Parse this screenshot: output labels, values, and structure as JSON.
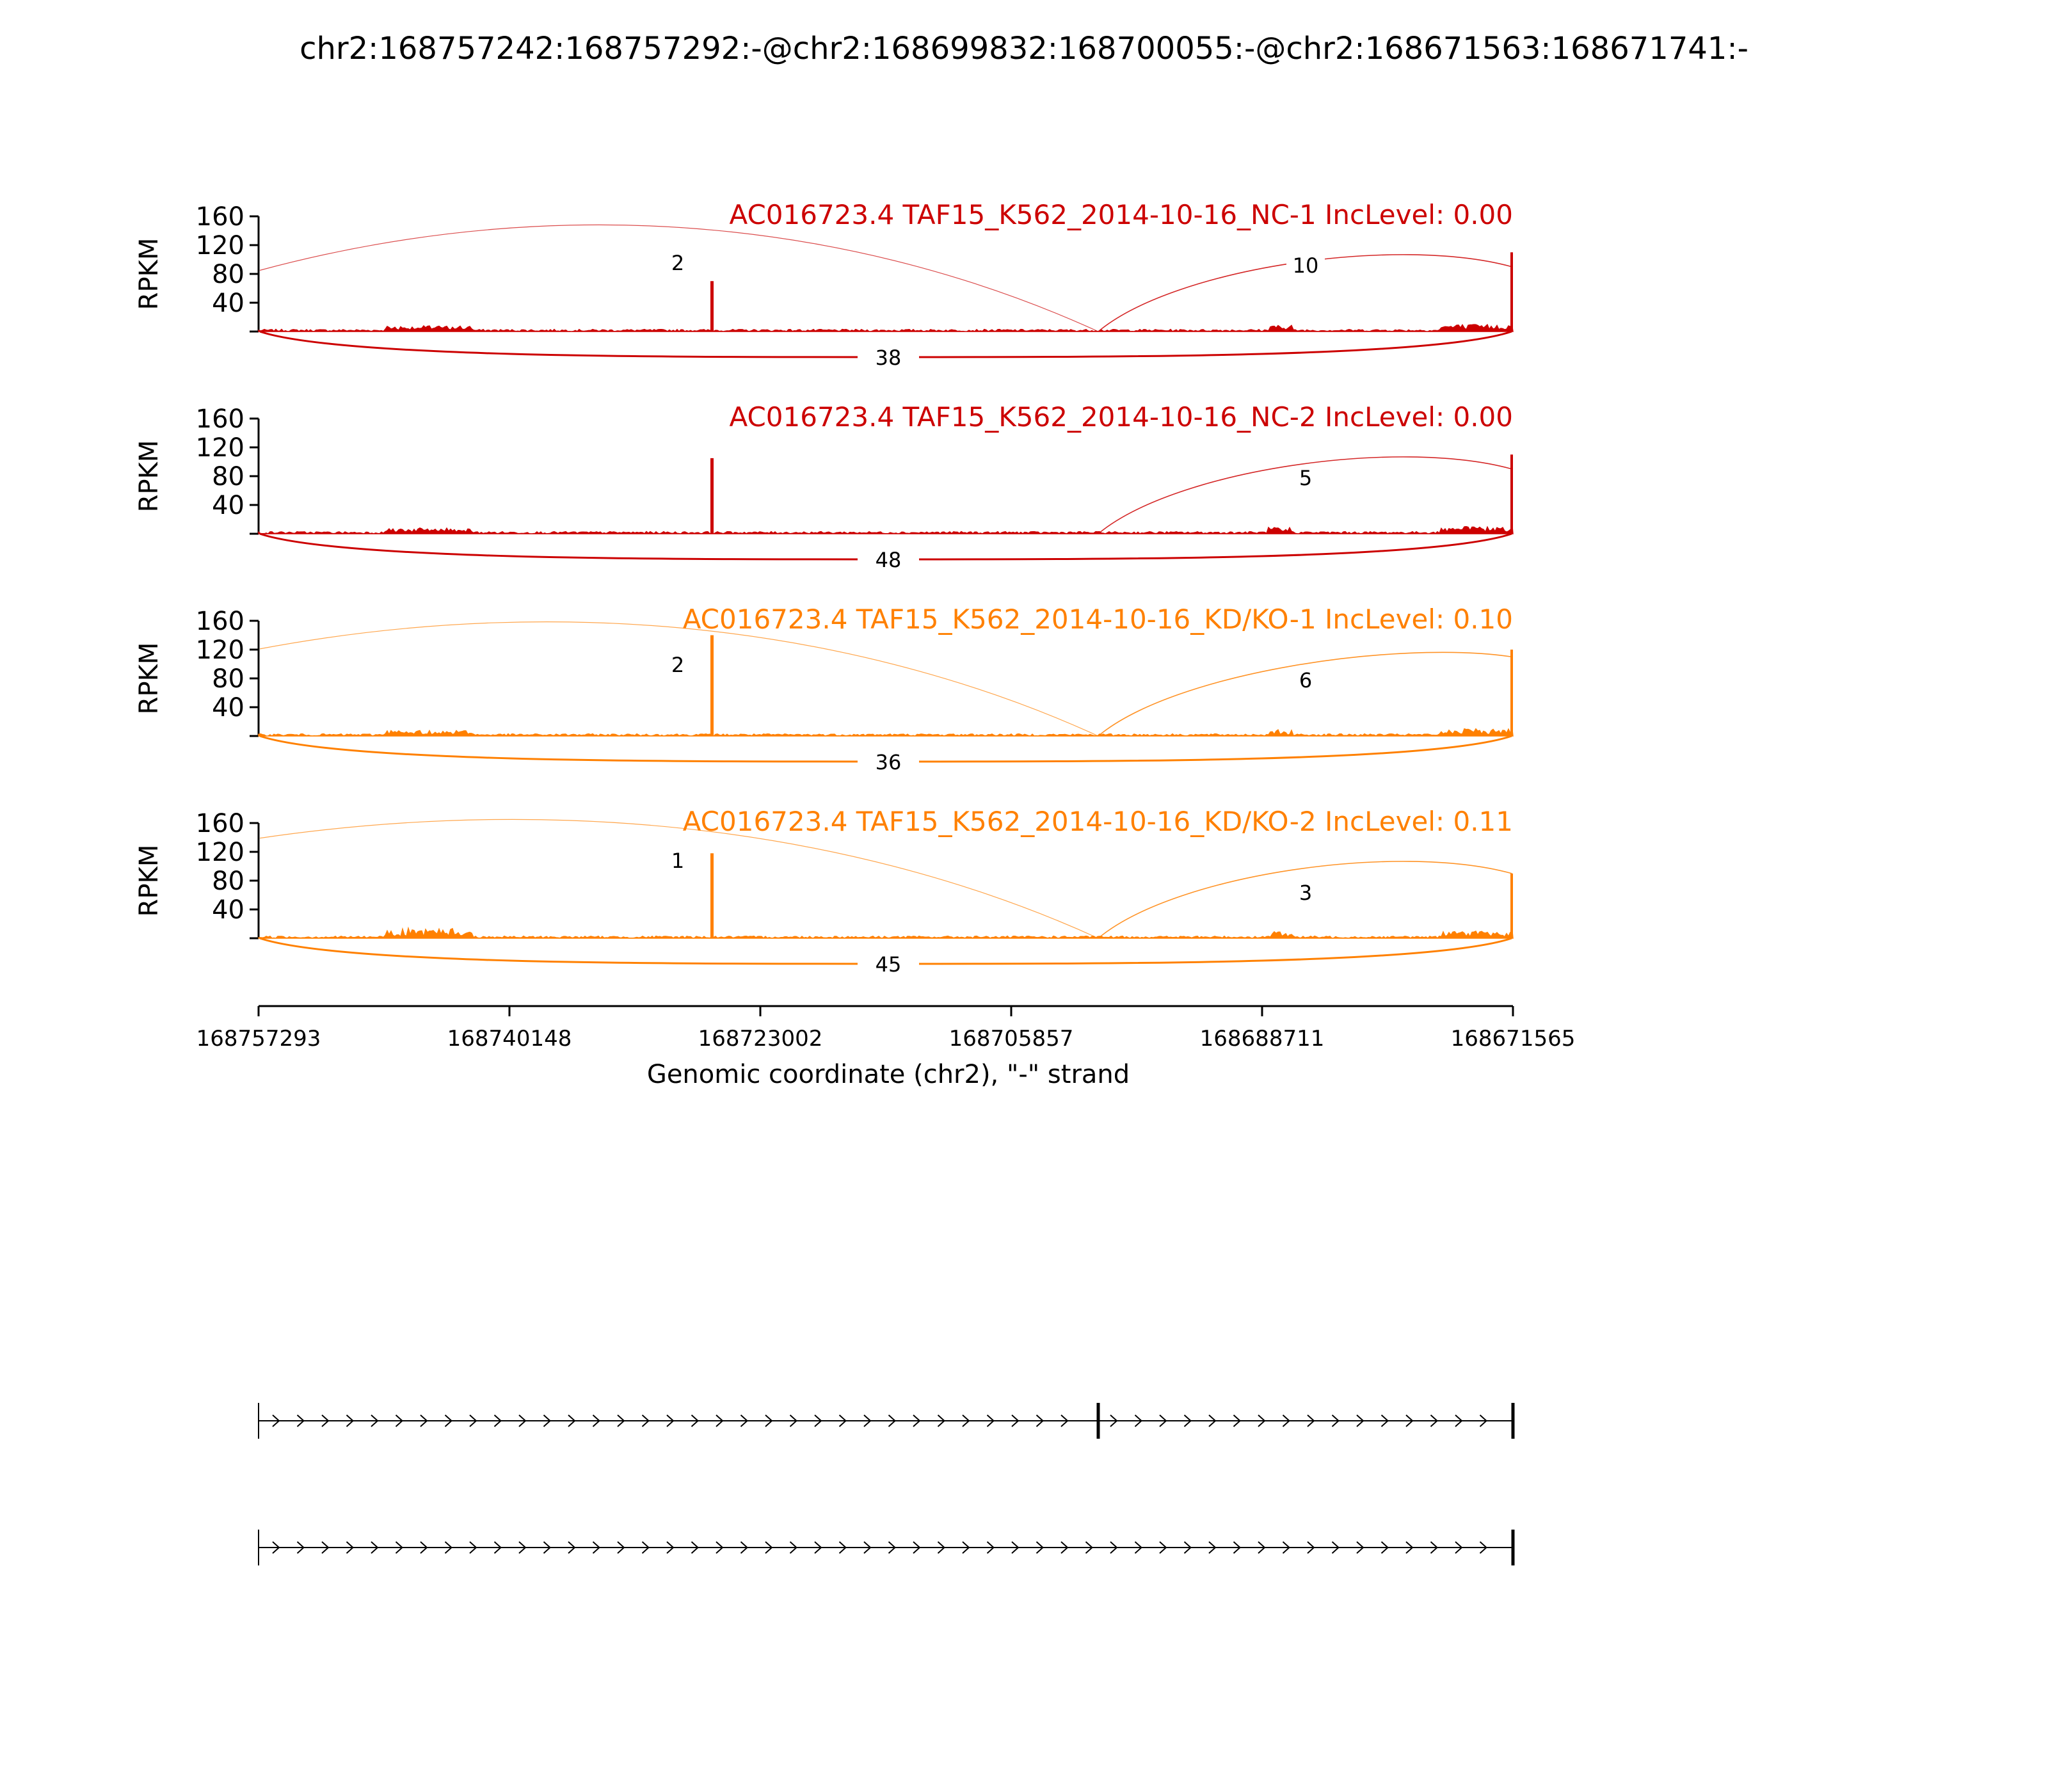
{
  "chart_data": {
    "type": "area",
    "title": "chr2:168757242:168757292:-@chr2:168699832:168700055:-@chr2:168671563:168671741:-",
    "xlabel": "Genomic coordinate (chr2), \"-\" strand",
    "ylabel": "RPKM",
    "x_ticks": [
      "168757293",
      "168740148",
      "168723002",
      "168705857",
      "168688711",
      "168671565"
    ],
    "y_ticks": [
      "40",
      "80",
      "120",
      "160"
    ],
    "ylim": [
      0,
      160
    ],
    "grid": false,
    "exons": {
      "upstream": "168757242-168757292",
      "skipped": "168699832-168700055",
      "downstream": "168671563-168671741"
    },
    "panels": [
      {
        "title": "AC016723.4 TAF15_K562_2014-10-16_NC-1 IncLevel: 0.00",
        "color": "#cc0000",
        "junctions": {
          "upstream_to_skipped": "2",
          "skipped_to_downstream": "10",
          "skipping": "38"
        },
        "coverage_peaks": {
          "alt_exon_peak": 70,
          "end_peak": 110
        }
      },
      {
        "title": "AC016723.4 TAF15_K562_2014-10-16_NC-2 IncLevel: 0.00",
        "color": "#cc0000",
        "junctions": {
          "upstream_to_skipped": "",
          "skipped_to_downstream": "5",
          "skipping": "48"
        },
        "coverage_peaks": {
          "alt_exon_peak": 105,
          "end_peak": 110
        }
      },
      {
        "title": "AC016723.4 TAF15_K562_2014-10-16_KD/KO-1 IncLevel: 0.10",
        "color": "#ff8000",
        "junctions": {
          "upstream_to_skipped": "2",
          "skipped_to_downstream": "6",
          "skipping": "36"
        },
        "coverage_peaks": {
          "alt_exon_peak": 140,
          "end_peak": 120
        }
      },
      {
        "title": "AC016723.4 TAF15_K562_2014-10-16_KD/KO-2 IncLevel: 0.11",
        "color": "#ff8000",
        "junctions": {
          "upstream_to_skipped": "1",
          "skipped_to_downstream": "3",
          "skipping": "45"
        },
        "coverage_peaks": {
          "alt_exon_peak": 118,
          "end_peak": 90
        }
      }
    ]
  }
}
